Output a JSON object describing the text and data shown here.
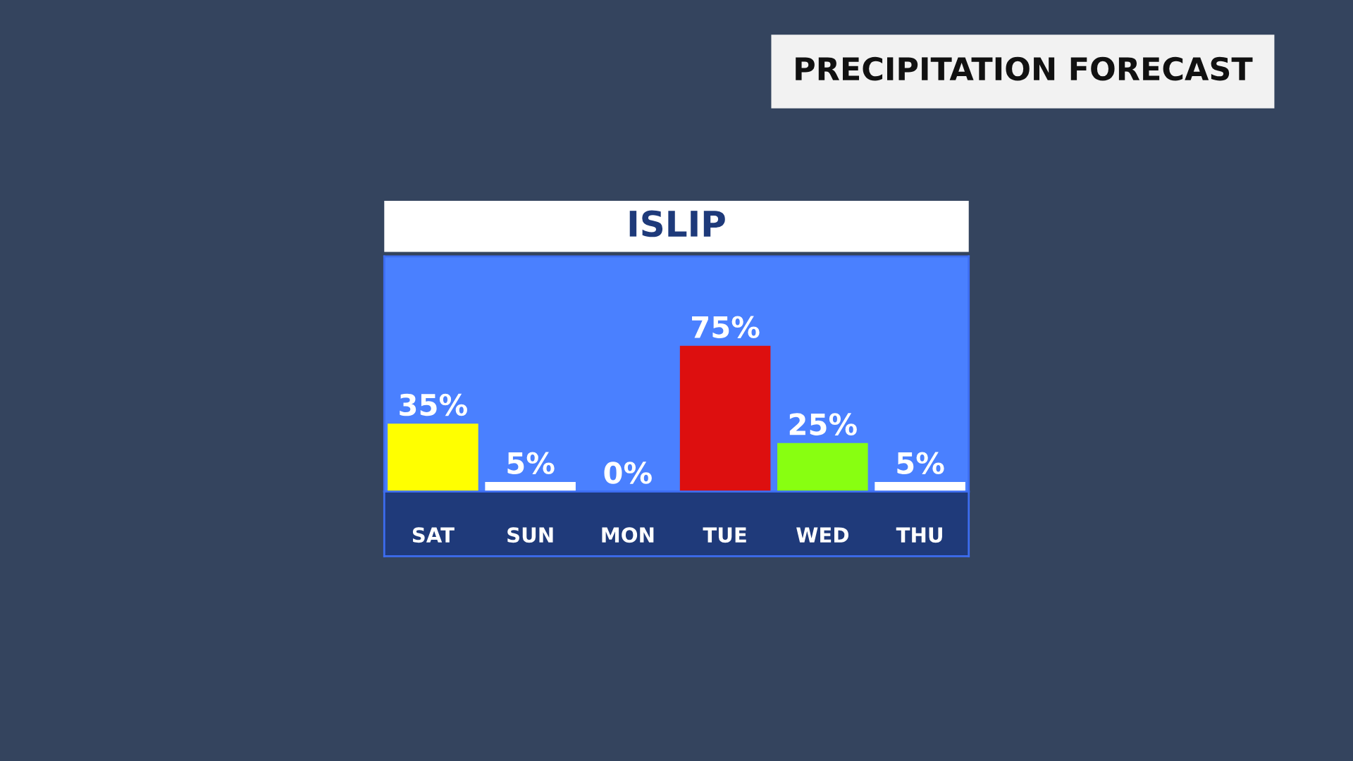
{
  "chart_data": {
    "type": "bar",
    "title": "PRECIPITATION FORECAST",
    "subtitle": "ISLIP",
    "categories": [
      "SAT",
      "SUN",
      "MON",
      "TUE",
      "WED",
      "THU"
    ],
    "values": [
      35,
      5,
      0,
      75,
      25,
      5
    ],
    "colors": [
      "#ffff00",
      "#ffffff",
      "#ffffff",
      "#dd0f0f",
      "#88ff11",
      "#ffffff"
    ],
    "value_labels": [
      "35%",
      "5%",
      "0%",
      "75%",
      "25%",
      "5%"
    ],
    "ylim": [
      0,
      121
    ],
    "grid": false,
    "legend": false
  }
}
